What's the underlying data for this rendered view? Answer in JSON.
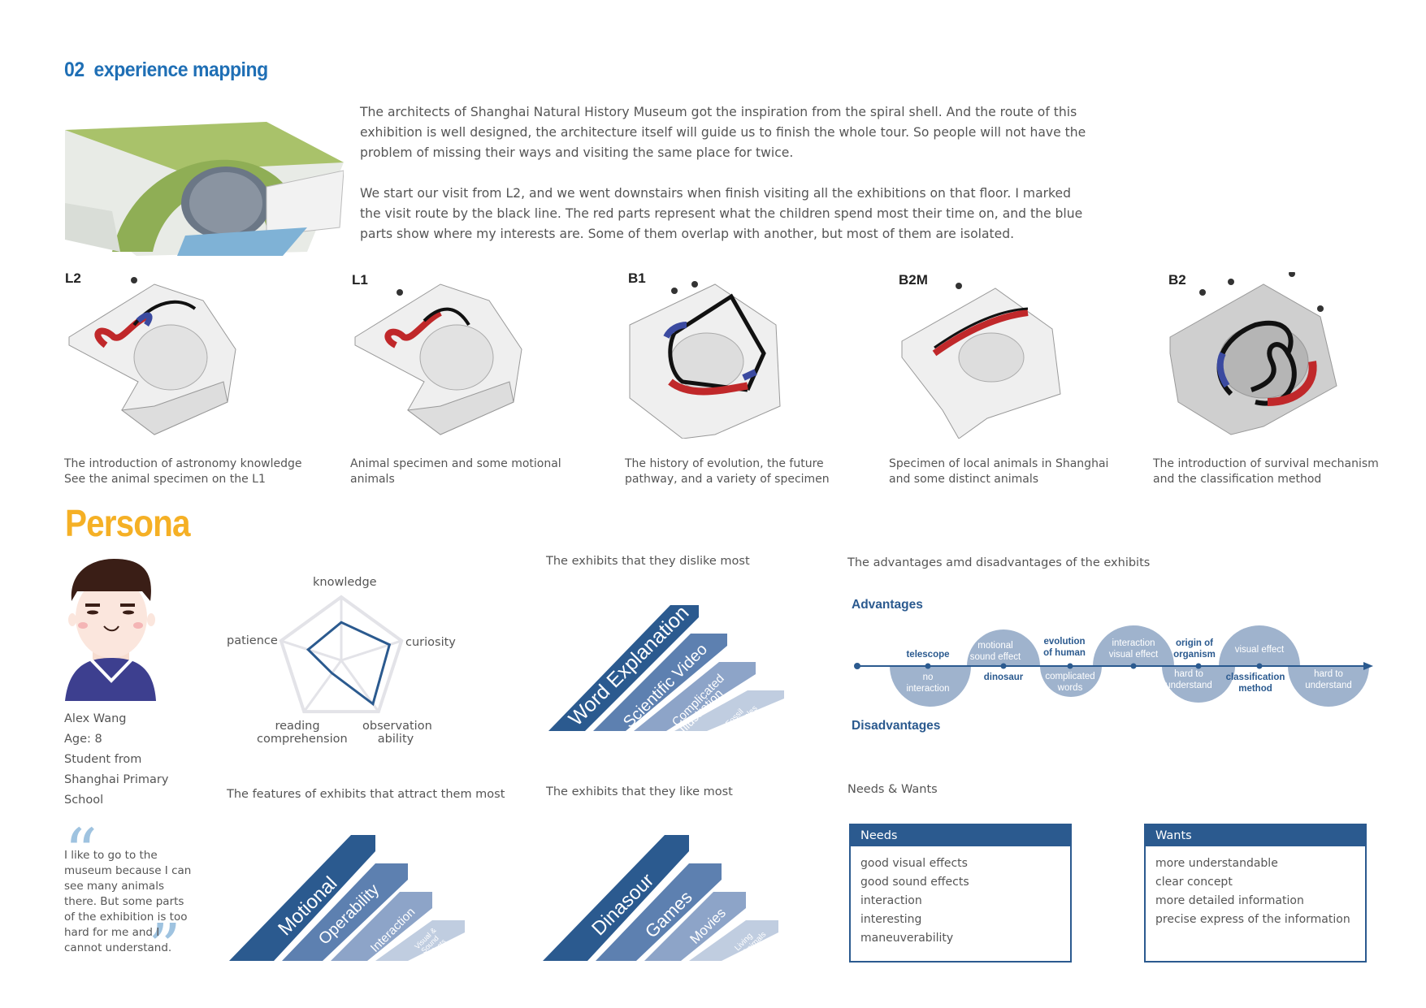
{
  "header": {
    "number": "02",
    "title": "experience mapping"
  },
  "intro": {
    "p1": "The architects of Shanghai Natural History Museum got the inspiration from the spiral shell. And the route of this exhibition is well designed, the architecture itself will guide us to finish the whole tour. So people will not have the problem of missing their ways and visiting the same place for twice.",
    "p2": "We start our visit from L2, and we went downstairs when finish visiting all the exhibitions on that floor. I marked the visit route by the black line. The red parts represent what the children spend most their time on, and the blue parts show where my interests are. Some of them overlap with another, but most of them are isolated."
  },
  "floors": [
    {
      "label": "L2",
      "caption1": "The introduction of astronomy knowledge",
      "caption2": "See the animal specimen on the L1"
    },
    {
      "label": "L1",
      "caption1": "Animal specimen and some motional",
      "caption2": "animals"
    },
    {
      "label": "B1",
      "caption1": "The history of evolution, the future",
      "caption2": "pathway, and a variety of specimen"
    },
    {
      "label": "B2M",
      "caption1": "Specimen of local animals in Shanghai",
      "caption2": "and some distinct animals"
    },
    {
      "label": "B2",
      "caption1": "The introduction of survival mechanism",
      "caption2": "and the classification method"
    }
  ],
  "persona": {
    "title": "Persona",
    "name": "Alex Wang",
    "age": "Age: 8",
    "school1": "Student from",
    "school2": "Shanghai Primary",
    "school3": "School",
    "quote": "I like to go to the museum because I can see many animals there. But some parts of the exhibition is too hard for me and I cannot understand."
  },
  "radar": {
    "axes": [
      "knowledge",
      "curiosity",
      "observation",
      "reading",
      "patience"
    ],
    "observation2": "ability",
    "reading2": "comprehension",
    "values": [
      0.6,
      0.8,
      0.85,
      0.25,
      0.55
    ]
  },
  "sections": {
    "dislike": "The exhibits that they dislike most",
    "like": "The exhibits that they like most",
    "features": "The features of exhibits that attract them most",
    "advdis": "The advantages amd disadvantages of the exhibits",
    "needs_wants": "Needs & Wants"
  },
  "dislike_items": [
    "Word Explanation",
    "Scientific Video",
    "Complicated",
    "Illustration",
    "Fossil",
    "Samples"
  ],
  "like_items": [
    "Dinasour",
    "Games",
    "Movies",
    "Living",
    "Animals"
  ],
  "feature_items": [
    "Motional",
    "Operability",
    "Interaction",
    "Visual &",
    "Sound",
    "Effects"
  ],
  "advantages": {
    "title": "Advantages",
    "dis_title": "Disadvantages",
    "adv_labels": [
      "telescope",
      "motional",
      "sound effect",
      "evolution",
      "of human",
      "interaction",
      "visual effect",
      "origin of",
      "organism",
      "visual effect"
    ],
    "dis_labels": [
      "no",
      "interaction",
      "dinosaur",
      "complicated",
      "words",
      "hard to",
      "understand",
      "classification",
      "method",
      "hard to",
      "understand"
    ]
  },
  "needs": {
    "title": "Needs",
    "items": [
      "good visual effects",
      "good sound effects",
      "interaction",
      "interesting",
      "maneuverability"
    ]
  },
  "wants": {
    "title": "Wants",
    "items": [
      "more understandable",
      "clear concept",
      "more detailed information",
      "precise express of the information"
    ]
  },
  "colors": {
    "accent_blue": "#1f6fb5",
    "navy": "#2b5a8f",
    "persona_yellow": "#f5b025",
    "route_red": "#c0282a",
    "bubble": "#9fb3cd"
  }
}
